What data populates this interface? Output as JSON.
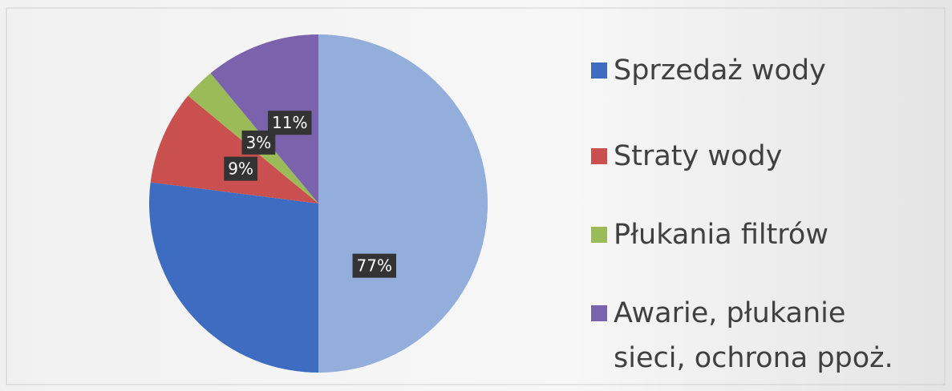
{
  "chart_data": {
    "type": "pie",
    "categories": [
      "Sprzedaż wody",
      "Straty wody",
      "Płukania filtrów",
      "Awarie, płukanie sieci, ochrona ppoż."
    ],
    "values": [
      77,
      9,
      3,
      11
    ],
    "value_labels": [
      "77%",
      "9%",
      "3%",
      "11%"
    ],
    "colors": [
      "#3d6cc0",
      "#c9504f",
      "#9bbb59",
      "#7a62ad"
    ],
    "legend": "right"
  }
}
